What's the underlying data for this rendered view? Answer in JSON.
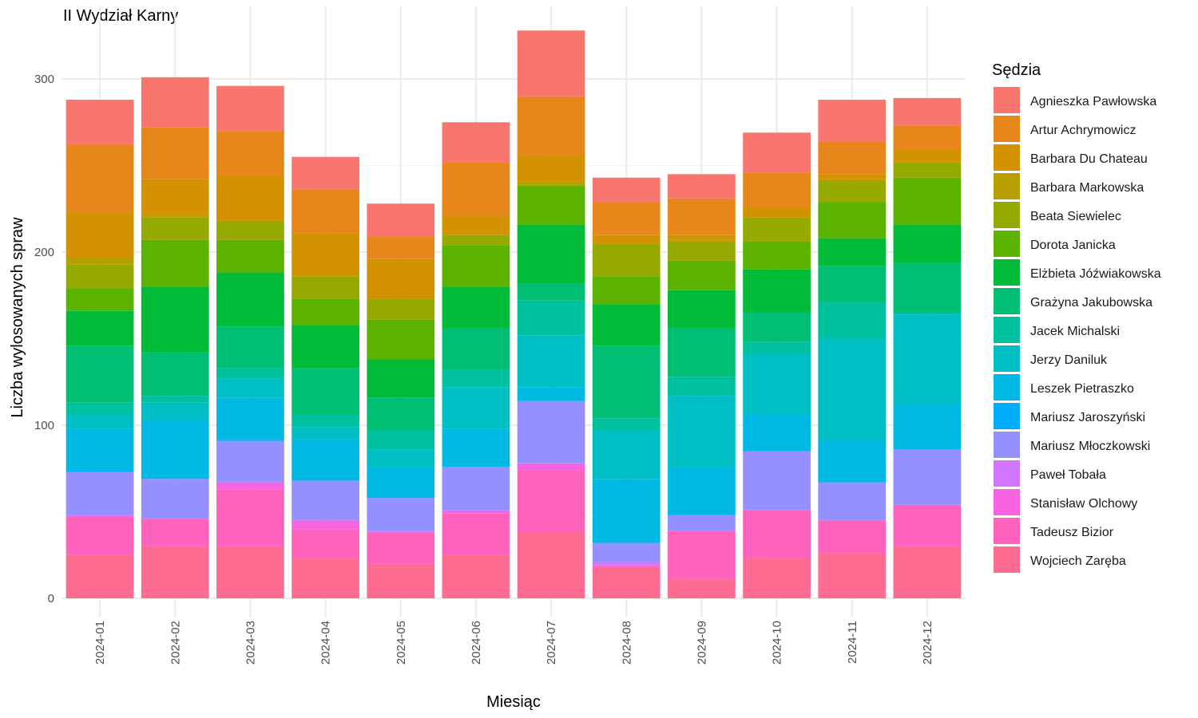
{
  "chart_data": {
    "type": "bar",
    "stacked": true,
    "title": "II Wydział Karny",
    "xlabel": "Miesiąc",
    "ylabel": "Liczba wylosowanych spraw",
    "ylim": [
      0,
      330
    ],
    "yticks": [
      0,
      100,
      200,
      300
    ],
    "grid": true,
    "legend": {
      "title": "Sędzia",
      "position": "right"
    },
    "categories": [
      "2024-01",
      "2024-02",
      "2024-03",
      "2024-04",
      "2024-05",
      "2024-06",
      "2024-07",
      "2024-08",
      "2024-09",
      "2024-10",
      "2024-11",
      "2024-12"
    ],
    "series": [
      {
        "name": "Agnieszka Pawłowska",
        "color": "#F8766D",
        "values": [
          26,
          29,
          26,
          19,
          19,
          23,
          38,
          14,
          14,
          23,
          24,
          16
        ]
      },
      {
        "name": "Artur Achrymowicz",
        "color": "#E7861B",
        "values": [
          39,
          30,
          26,
          25,
          13,
          31,
          34,
          19,
          21,
          20,
          19,
          14
        ]
      },
      {
        "name": "Barbara Du Chateau",
        "color": "#D39200",
        "values": [
          26,
          21,
          26,
          25,
          23,
          11,
          15,
          5,
          3,
          6,
          3,
          7
        ]
      },
      {
        "name": "Barbara Markowska",
        "color": "#B79F00",
        "values": [
          4,
          1,
          0,
          0,
          0,
          0,
          2,
          0,
          1,
          0,
          1,
          0
        ]
      },
      {
        "name": "Beata Siewielec",
        "color": "#95A900",
        "values": [
          14,
          13,
          11,
          13,
          12,
          6,
          1,
          19,
          11,
          14,
          12,
          9
        ]
      },
      {
        "name": "Dorota Janicka",
        "color": "#5BB300",
        "values": [
          13,
          27,
          19,
          15,
          23,
          24,
          22,
          16,
          17,
          16,
          21,
          27
        ]
      },
      {
        "name": "Elżbieta Jóźwiakowska",
        "color": "#00BA38",
        "values": [
          20,
          38,
          31,
          25,
          22,
          24,
          34,
          24,
          22,
          25,
          16,
          22
        ]
      },
      {
        "name": "Grażyna Jakubowska",
        "color": "#00BF74",
        "values": [
          33,
          25,
          24,
          27,
          19,
          24,
          10,
          42,
          28,
          17,
          21,
          29
        ]
      },
      {
        "name": "Jacek Michalski",
        "color": "#00C19F",
        "values": [
          7,
          4,
          6,
          7,
          11,
          10,
          20,
          7,
          11,
          7,
          21,
          1
        ]
      },
      {
        "name": "Jerzy Daniluk",
        "color": "#00BFC4",
        "values": [
          8,
          10,
          11,
          7,
          10,
          24,
          30,
          28,
          41,
          35,
          59,
          52
        ]
      },
      {
        "name": "Leszek Pietraszko",
        "color": "#00B9E3",
        "values": [
          24,
          34,
          24,
          24,
          18,
          22,
          8,
          37,
          28,
          21,
          24,
          26
        ]
      },
      {
        "name": "Mariusz Jaroszyński",
        "color": "#00ADFA",
        "values": [
          1,
          0,
          1,
          0,
          0,
          0,
          0,
          0,
          0,
          0,
          0,
          0
        ]
      },
      {
        "name": "Mariusz Młoczkowski",
        "color": "#9590FF",
        "values": [
          25,
          23,
          24,
          23,
          19,
          25,
          36,
          11,
          9,
          34,
          22,
          32
        ]
      },
      {
        "name": "Paweł Tobała",
        "color": "#D376FF",
        "values": [
          1,
          0,
          0,
          0,
          1,
          1,
          0,
          2,
          0,
          0,
          0,
          0
        ]
      },
      {
        "name": "Stanisław Olchowy",
        "color": "#F763E0",
        "values": [
          0,
          0,
          4,
          5,
          0,
          1,
          4,
          0,
          0,
          0,
          0,
          0
        ]
      },
      {
        "name": "Tadeusz Bizior",
        "color": "#FF62BC",
        "values": [
          22,
          16,
          33,
          17,
          18,
          24,
          36,
          1,
          28,
          28,
          19,
          24
        ]
      },
      {
        "name": "Wojciech Zaręba",
        "color": "#FF6C91",
        "values": [
          25,
          30,
          30,
          23,
          20,
          25,
          38,
          18,
          11,
          23,
          26,
          30
        ]
      }
    ]
  }
}
